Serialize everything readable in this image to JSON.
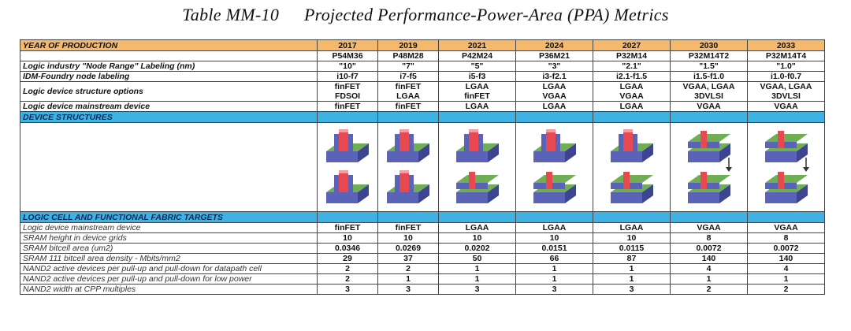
{
  "title": {
    "table_id": "Table MM-10",
    "text": "Projected Performance-Power-Area (PPA) Metrics"
  },
  "year_row": {
    "label": "YEAR OF PRODUCTION",
    "years": [
      "2017",
      "2019",
      "2021",
      "2024",
      "2027",
      "2030",
      "2033"
    ]
  },
  "pitch_row": [
    "P54M36",
    "P48M28",
    "P42M24",
    "P36M21",
    "P32M14",
    "P32M14T2",
    "P32M14T4"
  ],
  "rows_top": [
    {
      "label": "Logic industry \"Node Range\" Labeling (nm)",
      "values": [
        "\"10\"",
        "\"7\"",
        "\"5\"",
        "\"3\"",
        "\"2.1\"",
        "\"1.5\"",
        "\"1.0\""
      ]
    },
    {
      "label": "IDM-Foundry node labeling",
      "values": [
        "i10-f7",
        "i7-f5",
        "i5-f3",
        "i3-f2.1",
        "i2.1-f1.5",
        "i1.5-f1.0",
        "i1.0-f0.7"
      ]
    }
  ],
  "structure_row": {
    "label": "Logic device structure options",
    "line1": [
      "finFET",
      "finFET",
      "LGAA",
      "LGAA",
      "LGAA",
      "VGAA, LGAA",
      "VGAA, LGAA"
    ],
    "line2": [
      "FDSOI",
      "LGAA",
      "finFET",
      "VGAA",
      "VGAA",
      "3DVLSI",
      "3DVLSI"
    ]
  },
  "mainstream_row": {
    "label": "Logic device mainstream device",
    "values": [
      "finFET",
      "finFET",
      "LGAA",
      "LGAA",
      "LGAA",
      "VGAA",
      "VGAA"
    ]
  },
  "section_device": "DEVICE STRUCTURES",
  "section_logic": "LOGIC CELL AND FUNCTIONAL FABRIC TARGETS",
  "rows_bottom": [
    {
      "label": "Logic device mainstream device",
      "values": [
        "finFET",
        "finFET",
        "LGAA",
        "LGAA",
        "LGAA",
        "VGAA",
        "VGAA"
      ]
    },
    {
      "label": "SRAM height in device grids",
      "values": [
        "10",
        "10",
        "10",
        "10",
        "10",
        "8",
        "8"
      ]
    },
    {
      "label": "SRAM bitcell area (um2)",
      "values": [
        "0.0346",
        "0.0269",
        "0.0202",
        "0.0151",
        "0.0115",
        "0.0072",
        "0.0072"
      ]
    },
    {
      "label": "SRAM 111 bitcell area density - Mbits/mm2",
      "values": [
        "29",
        "37",
        "50",
        "66",
        "87",
        "140",
        "140"
      ]
    },
    {
      "label": "NAND2 active devices per pull-up and pull-down for datapath cell",
      "values": [
        "2",
        "2",
        "1",
        "1",
        "1",
        "4",
        "4"
      ]
    },
    {
      "label": "NAND2 active devices per pull-up and pull-down for low power",
      "values": [
        "2",
        "1",
        "1",
        "1",
        "1",
        "1",
        "1"
      ]
    },
    {
      "label": "NAND2 width at CPP multiples",
      "values": [
        "3",
        "3",
        "3",
        "3",
        "3",
        "2",
        "2"
      ]
    }
  ],
  "device_images": [
    "finfet-device-icon",
    "finfet-device-icon",
    "lgaa-device-icon",
    "lgaa-device-icon",
    "lgaa-device-icon",
    "vgaa-stack-device-icon",
    "vgaa-stack-device-icon"
  ],
  "colors": {
    "year_bg": "#f6b96b",
    "section_bg": "#3fb2e3"
  }
}
